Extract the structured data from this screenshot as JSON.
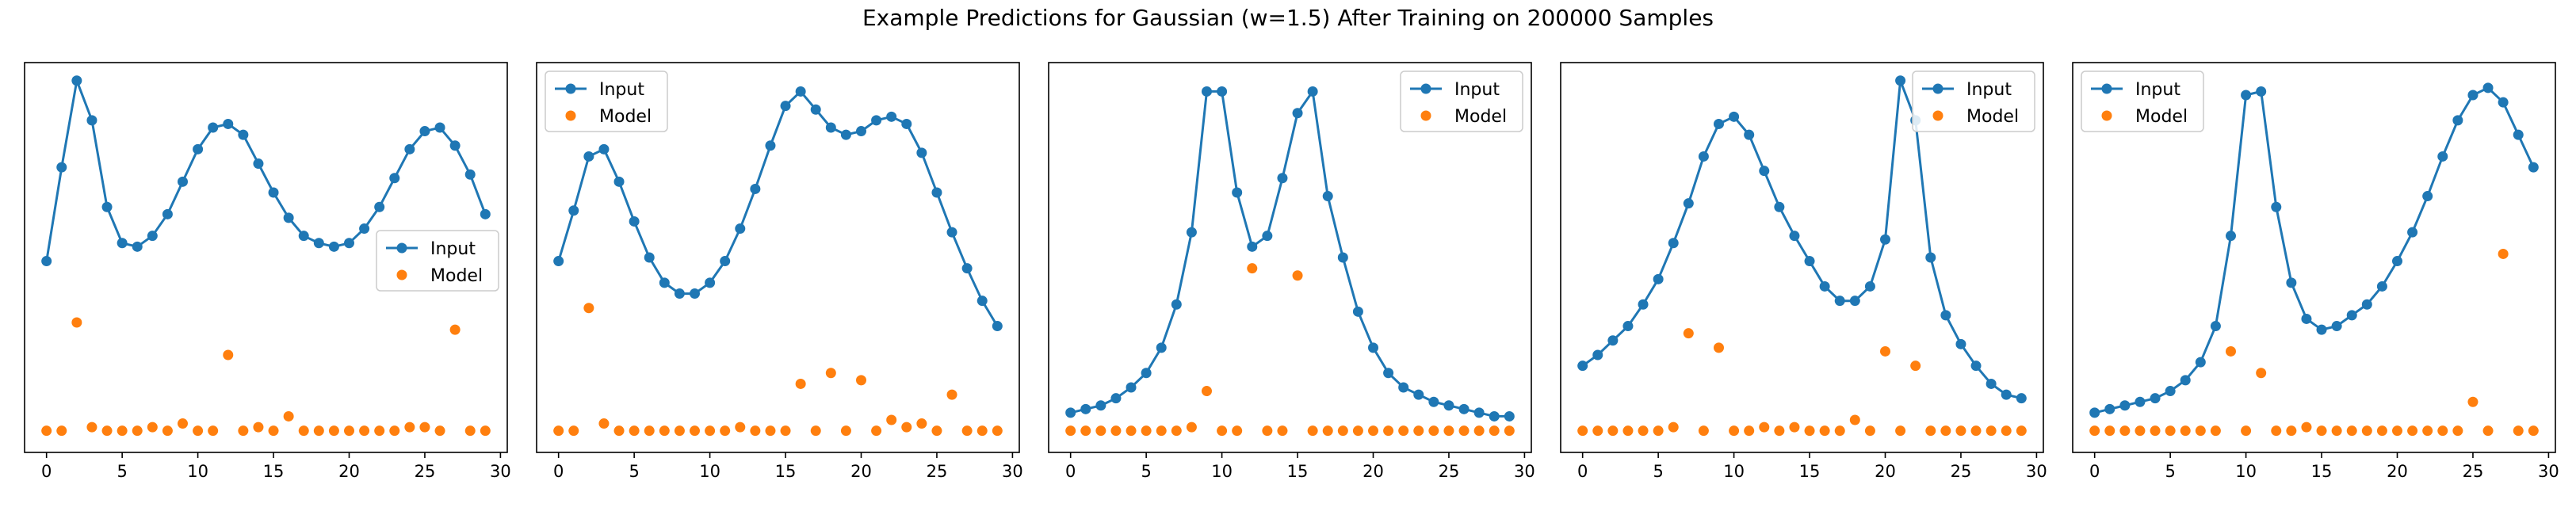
{
  "figure": {
    "title": "Example Predictions for Gaussian (w=1.5) After Training on 200000 Samples"
  },
  "colors": {
    "input": "#1f77b4",
    "model": "#ff7f0e",
    "axes": "#000000"
  },
  "chart_data": [
    {
      "type": "line",
      "x": [
        0,
        1,
        2,
        3,
        4,
        5,
        6,
        7,
        8,
        9,
        10,
        11,
        12,
        13,
        14,
        15,
        16,
        17,
        18,
        19,
        20,
        21,
        22,
        23,
        24,
        25,
        26,
        27,
        28,
        29
      ],
      "xlim": [
        -1.45,
        30.45
      ],
      "xticks": [
        0,
        5,
        10,
        15,
        20,
        25,
        30
      ],
      "ylim": [
        -0.03,
        1.05
      ],
      "legend": {
        "loc": "center-right",
        "entries": [
          "Input",
          "Model"
        ]
      },
      "series": [
        {
          "name": "Input",
          "style": "line+marker",
          "values": [
            0.5,
            0.76,
            1.0,
            0.89,
            0.65,
            0.55,
            0.54,
            0.57,
            0.63,
            0.72,
            0.81,
            0.87,
            0.88,
            0.85,
            0.77,
            0.69,
            0.62,
            0.57,
            0.55,
            0.54,
            0.55,
            0.59,
            0.65,
            0.73,
            0.81,
            0.86,
            0.87,
            0.82,
            0.74,
            0.63
          ]
        },
        {
          "name": "Model",
          "style": "marker",
          "values": [
            0.03,
            0.03,
            0.33,
            0.04,
            0.03,
            0.03,
            0.03,
            0.04,
            0.03,
            0.05,
            0.03,
            0.03,
            0.24,
            0.03,
            0.04,
            0.03,
            0.07,
            0.03,
            0.03,
            0.03,
            0.03,
            0.03,
            0.03,
            0.03,
            0.04,
            0.04,
            0.03,
            0.31,
            0.03,
            0.03
          ]
        }
      ]
    },
    {
      "type": "line",
      "x": [
        0,
        1,
        2,
        3,
        4,
        5,
        6,
        7,
        8,
        9,
        10,
        11,
        12,
        13,
        14,
        15,
        16,
        17,
        18,
        19,
        20,
        21,
        22,
        23,
        24,
        25,
        26,
        27,
        28,
        29
      ],
      "xlim": [
        -1.45,
        30.45
      ],
      "xticks": [
        0,
        5,
        10,
        15,
        20,
        25,
        30
      ],
      "ylim": [
        -0.03,
        1.05
      ],
      "legend": {
        "loc": "top-left",
        "entries": [
          "Input",
          "Model"
        ]
      },
      "series": [
        {
          "name": "Input",
          "style": "line+marker",
          "values": [
            0.5,
            0.64,
            0.79,
            0.81,
            0.72,
            0.61,
            0.51,
            0.44,
            0.41,
            0.41,
            0.44,
            0.5,
            0.59,
            0.7,
            0.82,
            0.93,
            0.97,
            0.92,
            0.87,
            0.85,
            0.86,
            0.89,
            0.9,
            0.88,
            0.8,
            0.69,
            0.58,
            0.48,
            0.39,
            0.32
          ]
        },
        {
          "name": "Model",
          "style": "marker",
          "values": [
            0.03,
            0.03,
            0.37,
            0.05,
            0.03,
            0.03,
            0.03,
            0.03,
            0.03,
            0.03,
            0.03,
            0.03,
            0.04,
            0.03,
            0.03,
            0.03,
            0.16,
            0.03,
            0.19,
            0.03,
            0.17,
            0.03,
            0.06,
            0.04,
            0.05,
            0.03,
            0.13,
            0.03,
            0.03,
            0.03
          ]
        }
      ]
    },
    {
      "type": "line",
      "x": [
        0,
        1,
        2,
        3,
        4,
        5,
        6,
        7,
        8,
        9,
        10,
        11,
        12,
        13,
        14,
        15,
        16,
        17,
        18,
        19,
        20,
        21,
        22,
        23,
        24,
        25,
        26,
        27,
        28,
        29
      ],
      "xlim": [
        -1.45,
        30.45
      ],
      "xticks": [
        0,
        5,
        10,
        15,
        20,
        25,
        30
      ],
      "ylim": [
        -0.03,
        1.05
      ],
      "legend": {
        "loc": "top-right",
        "entries": [
          "Input",
          "Model"
        ]
      },
      "series": [
        {
          "name": "Input",
          "style": "line+marker",
          "values": [
            0.08,
            0.09,
            0.1,
            0.12,
            0.15,
            0.19,
            0.26,
            0.38,
            0.58,
            0.97,
            0.97,
            0.69,
            0.54,
            0.57,
            0.73,
            0.91,
            0.97,
            0.68,
            0.51,
            0.36,
            0.26,
            0.19,
            0.15,
            0.13,
            0.11,
            0.1,
            0.09,
            0.08,
            0.07,
            0.07
          ]
        },
        {
          "name": "Model",
          "style": "marker",
          "values": [
            0.03,
            0.03,
            0.03,
            0.03,
            0.03,
            0.03,
            0.03,
            0.03,
            0.04,
            0.14,
            0.03,
            0.03,
            0.48,
            0.03,
            0.03,
            0.46,
            0.03,
            0.03,
            0.03,
            0.03,
            0.03,
            0.03,
            0.03,
            0.03,
            0.03,
            0.03,
            0.03,
            0.03,
            0.03,
            0.03
          ]
        }
      ]
    },
    {
      "type": "line",
      "x": [
        0,
        1,
        2,
        3,
        4,
        5,
        6,
        7,
        8,
        9,
        10,
        11,
        12,
        13,
        14,
        15,
        16,
        17,
        18,
        19,
        20,
        21,
        22,
        23,
        24,
        25,
        26,
        27,
        28,
        29
      ],
      "xlim": [
        -1.45,
        30.45
      ],
      "xticks": [
        0,
        5,
        10,
        15,
        20,
        25,
        30
      ],
      "ylim": [
        -0.03,
        1.05
      ],
      "legend": {
        "loc": "top-right",
        "entries": [
          "Input",
          "Model"
        ]
      },
      "series": [
        {
          "name": "Input",
          "style": "line+marker",
          "values": [
            0.21,
            0.24,
            0.28,
            0.32,
            0.38,
            0.45,
            0.55,
            0.66,
            0.79,
            0.88,
            0.9,
            0.85,
            0.75,
            0.65,
            0.57,
            0.5,
            0.43,
            0.39,
            0.39,
            0.43,
            0.56,
            1.0,
            0.89,
            0.51,
            0.35,
            0.27,
            0.21,
            0.16,
            0.13,
            0.12
          ]
        },
        {
          "name": "Model",
          "style": "marker",
          "values": [
            0.03,
            0.03,
            0.03,
            0.03,
            0.03,
            0.03,
            0.04,
            0.3,
            0.03,
            0.26,
            0.03,
            0.03,
            0.04,
            0.03,
            0.04,
            0.03,
            0.03,
            0.03,
            0.06,
            0.03,
            0.25,
            0.03,
            0.21,
            0.03,
            0.03,
            0.03,
            0.03,
            0.03,
            0.03,
            0.03
          ]
        }
      ]
    },
    {
      "type": "line",
      "x": [
        0,
        1,
        2,
        3,
        4,
        5,
        6,
        7,
        8,
        9,
        10,
        11,
        12,
        13,
        14,
        15,
        16,
        17,
        18,
        19,
        20,
        21,
        22,
        23,
        24,
        25,
        26,
        27,
        28,
        29
      ],
      "xlim": [
        -1.45,
        30.45
      ],
      "xticks": [
        0,
        5,
        10,
        15,
        20,
        25,
        30
      ],
      "ylim": [
        -0.03,
        1.05
      ],
      "legend": {
        "loc": "top-left",
        "entries": [
          "Input",
          "Model"
        ]
      },
      "series": [
        {
          "name": "Input",
          "style": "line+marker",
          "values": [
            0.08,
            0.09,
            0.1,
            0.11,
            0.12,
            0.14,
            0.17,
            0.22,
            0.32,
            0.57,
            0.96,
            0.97,
            0.65,
            0.44,
            0.34,
            0.31,
            0.32,
            0.35,
            0.38,
            0.43,
            0.5,
            0.58,
            0.68,
            0.79,
            0.89,
            0.96,
            0.98,
            0.94,
            0.85,
            0.76
          ]
        },
        {
          "name": "Model",
          "style": "marker",
          "values": [
            0.03,
            0.03,
            0.03,
            0.03,
            0.03,
            0.03,
            0.03,
            0.03,
            0.03,
            0.25,
            0.03,
            0.19,
            0.03,
            0.03,
            0.04,
            0.03,
            0.03,
            0.03,
            0.03,
            0.03,
            0.03,
            0.03,
            0.03,
            0.03,
            0.03,
            0.11,
            0.03,
            0.52,
            0.03,
            0.03
          ]
        }
      ]
    }
  ]
}
